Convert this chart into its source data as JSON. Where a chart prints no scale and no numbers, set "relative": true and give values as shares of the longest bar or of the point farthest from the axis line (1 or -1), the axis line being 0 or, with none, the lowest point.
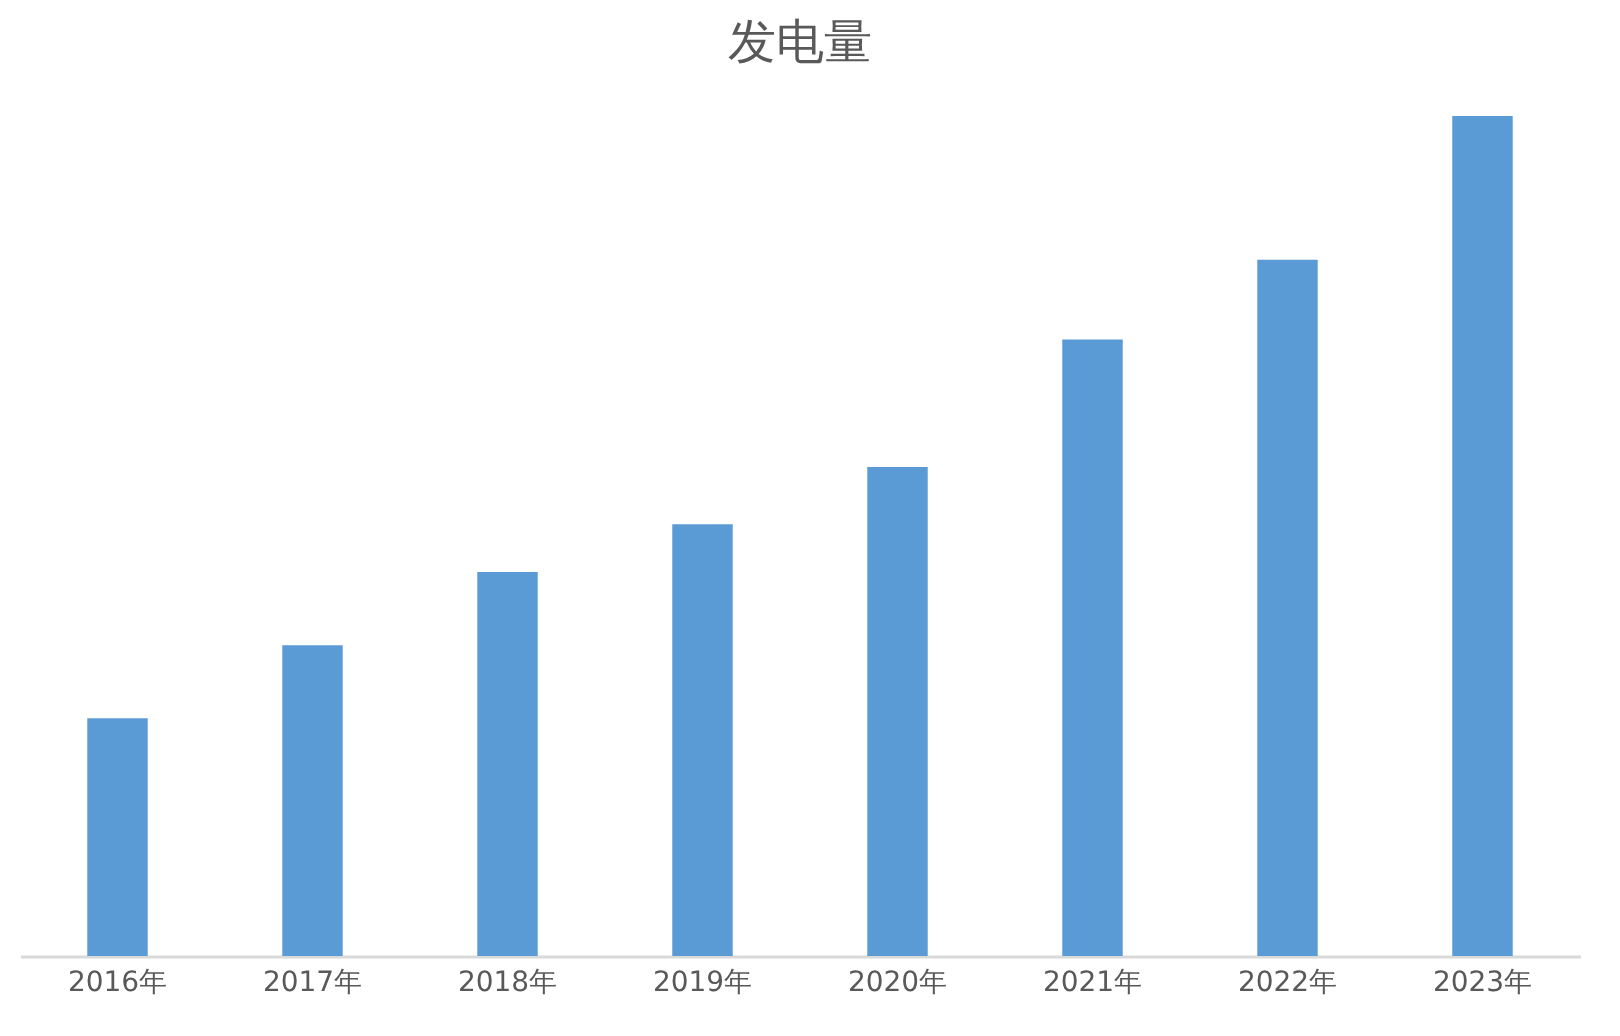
{
  "chart_data": {
    "type": "bar",
    "title": "发电量",
    "relative": true,
    "categories": [
      "2016年",
      "2017年",
      "2018年",
      "2019年",
      "2020年",
      "2021年",
      "2022年",
      "2023年"
    ],
    "values": [
      0.283,
      0.37,
      0.457,
      0.514,
      0.582,
      0.734,
      0.829,
      1
    ],
    "color": "#5b9bd5"
  }
}
